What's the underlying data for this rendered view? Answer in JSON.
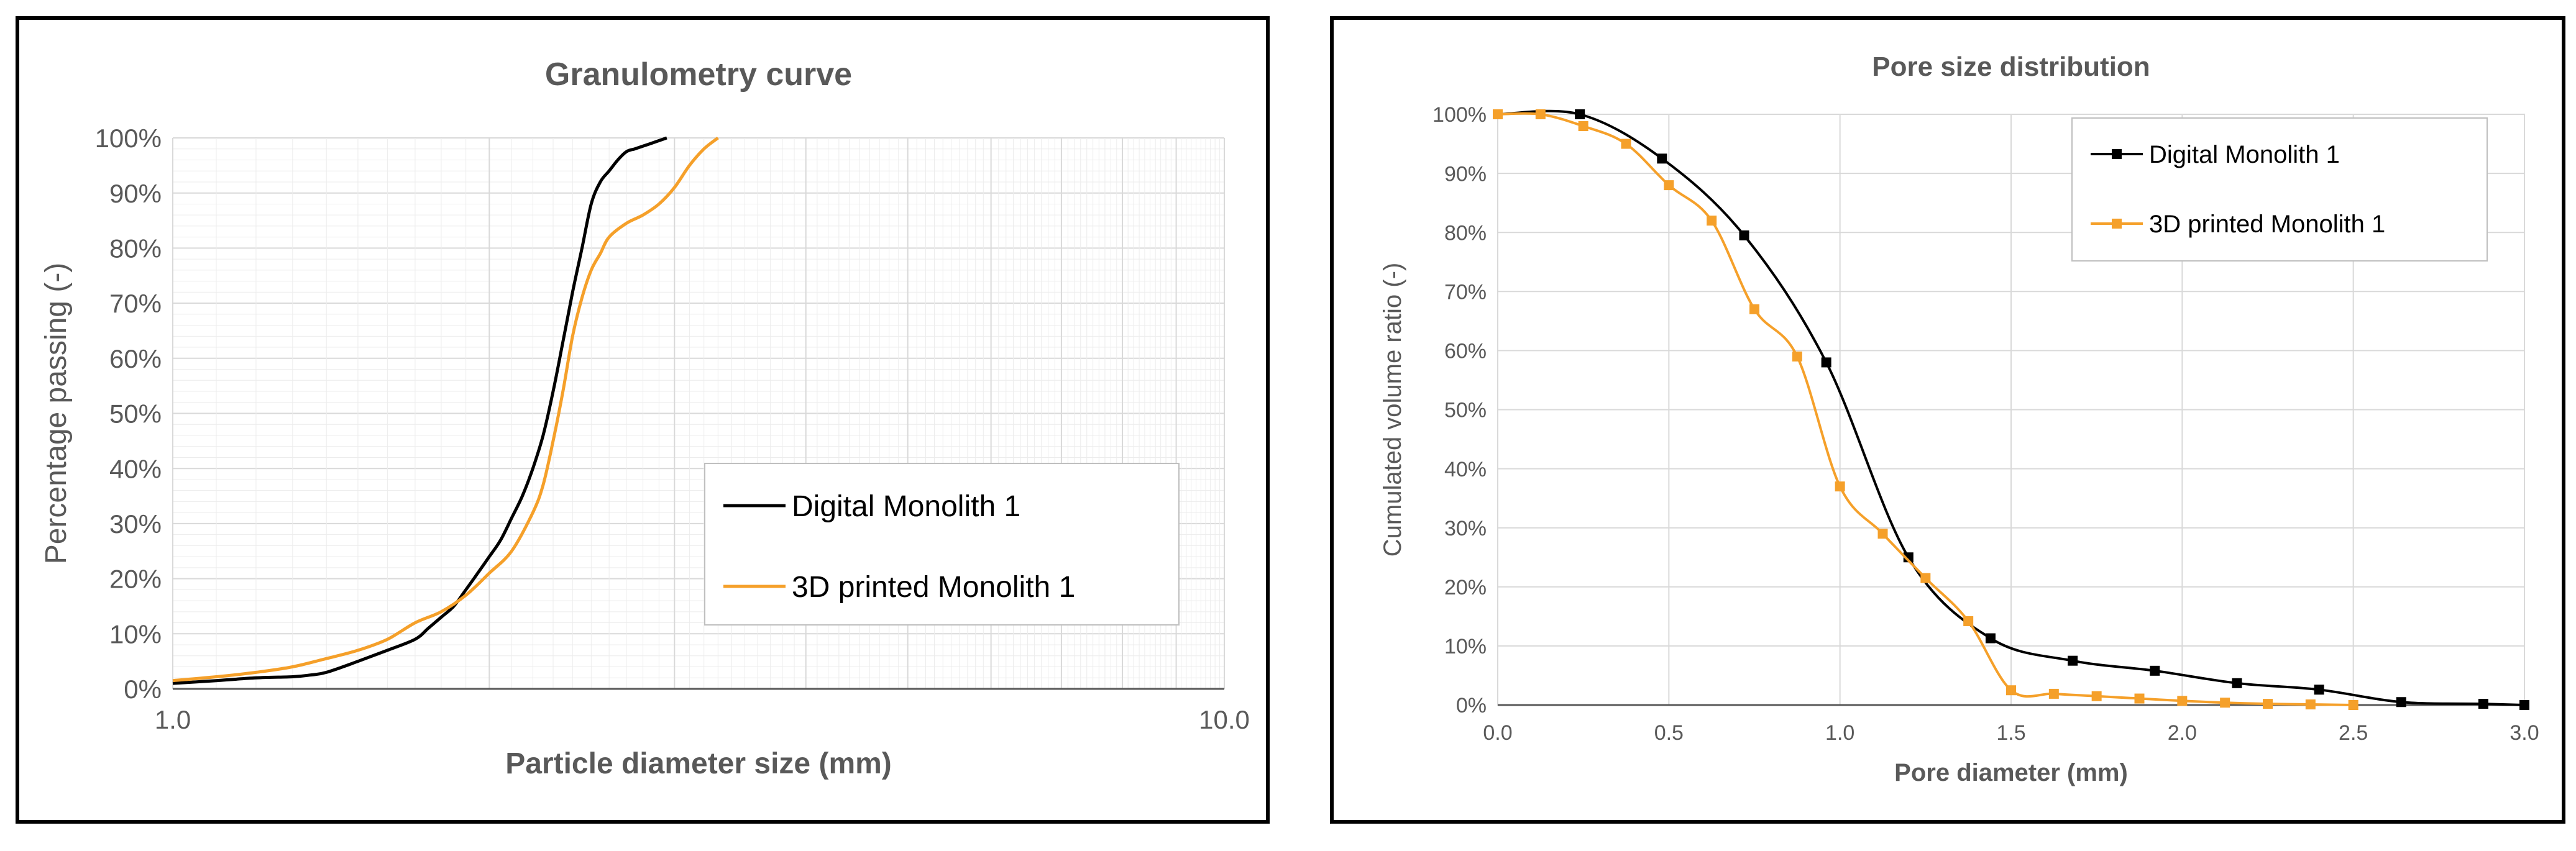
{
  "chart_data": [
    {
      "type": "line",
      "title": "Granulometry curve",
      "xlabel": "Particle diameter size (mm)",
      "ylabel": "Percentage passing (-)",
      "x_scale": "log",
      "xlim": [
        1.0,
        10.0
      ],
      "ylim": [
        0,
        100
      ],
      "x_tick_labels": [
        "1.0",
        "10.0"
      ],
      "y_tick_labels": [
        "0%",
        "10%",
        "20%",
        "30%",
        "40%",
        "50%",
        "60%",
        "70%",
        "80%",
        "90%",
        "100%"
      ],
      "grid": true,
      "legend_position": "bottom-right",
      "series": [
        {
          "name": "Digital Monolith 1",
          "color": "#000000",
          "x": [
            1.0,
            1.1,
            1.2,
            1.3,
            1.35,
            1.4,
            1.5,
            1.6,
            1.7,
            1.75,
            1.8,
            1.85,
            1.9,
            1.95,
            2.0,
            2.05,
            2.1,
            2.15,
            2.2,
            2.25,
            2.3,
            2.35,
            2.4,
            2.45,
            2.5,
            2.55,
            2.6,
            2.65,
            2.7,
            2.75,
            2.8,
            2.85,
            2.9,
            2.95
          ],
          "values": [
            1,
            1.5,
            2,
            2.2,
            2.5,
            3,
            5,
            7,
            9,
            11,
            13,
            15,
            18,
            21,
            24,
            27,
            31,
            35,
            40,
            46,
            54,
            63,
            72,
            80,
            88,
            92,
            94,
            96,
            97.5,
            98,
            98.5,
            99,
            99.5,
            100
          ]
        },
        {
          "name": "3D printed Monolith 1",
          "color": "#F5A02A",
          "x": [
            1.0,
            1.1,
            1.2,
            1.3,
            1.4,
            1.5,
            1.6,
            1.7,
            1.8,
            1.9,
            2.0,
            2.1,
            2.2,
            2.25,
            2.3,
            2.35,
            2.4,
            2.45,
            2.5,
            2.55,
            2.6,
            2.7,
            2.8,
            2.9,
            3.0,
            3.1,
            3.2,
            3.3
          ],
          "values": [
            1.5,
            2.2,
            3,
            4,
            5.5,
            7,
            9,
            12,
            14,
            17,
            21,
            25,
            32,
            37,
            45,
            54,
            64,
            71,
            76,
            79,
            82,
            84.5,
            86,
            88,
            91,
            95,
            98,
            100
          ]
        }
      ]
    },
    {
      "type": "line",
      "title": "Pore size distribution",
      "xlabel": "Pore diameter (mm)",
      "ylabel": "Cumulated volume ratio (-)",
      "xlim": [
        0.0,
        3.0
      ],
      "ylim": [
        0,
        100
      ],
      "x_tick_labels": [
        "0.0",
        "0.5",
        "1.0",
        "1.5",
        "2.0",
        "2.5",
        "3.0"
      ],
      "y_tick_labels": [
        "0%",
        "10%",
        "20%",
        "30%",
        "40%",
        "50%",
        "60%",
        "70%",
        "80%",
        "90%",
        "100%"
      ],
      "grid": true,
      "legend_position": "top-right",
      "series": [
        {
          "name": "Digital Monolith 1",
          "color": "#000000",
          "marker": "square",
          "x": [
            0.0,
            0.24,
            0.48,
            0.72,
            0.96,
            1.2,
            1.44,
            1.68,
            1.92,
            2.16,
            2.4,
            2.64,
            2.88,
            3.0
          ],
          "values": [
            100,
            100,
            92.5,
            79.5,
            58,
            25,
            11.3,
            7.5,
            5.8,
            3.7,
            2.6,
            0.5,
            0.2,
            0.0
          ]
        },
        {
          "name": "3D printed Monolith 1",
          "color": "#F5A02A",
          "marker": "square",
          "x": [
            0.0,
            0.125,
            0.25,
            0.375,
            0.5,
            0.625,
            0.75,
            0.875,
            1.0,
            1.125,
            1.25,
            1.375,
            1.5,
            1.625,
            1.75,
            1.875,
            2.0,
            2.125,
            2.25,
            2.375,
            2.5
          ],
          "values": [
            100,
            100,
            98,
            95,
            88,
            82,
            67,
            59,
            37,
            29,
            21.5,
            14.2,
            2.5,
            1.9,
            1.5,
            1.1,
            0.7,
            0.4,
            0.2,
            0.1,
            0.0
          ]
        }
      ]
    }
  ]
}
